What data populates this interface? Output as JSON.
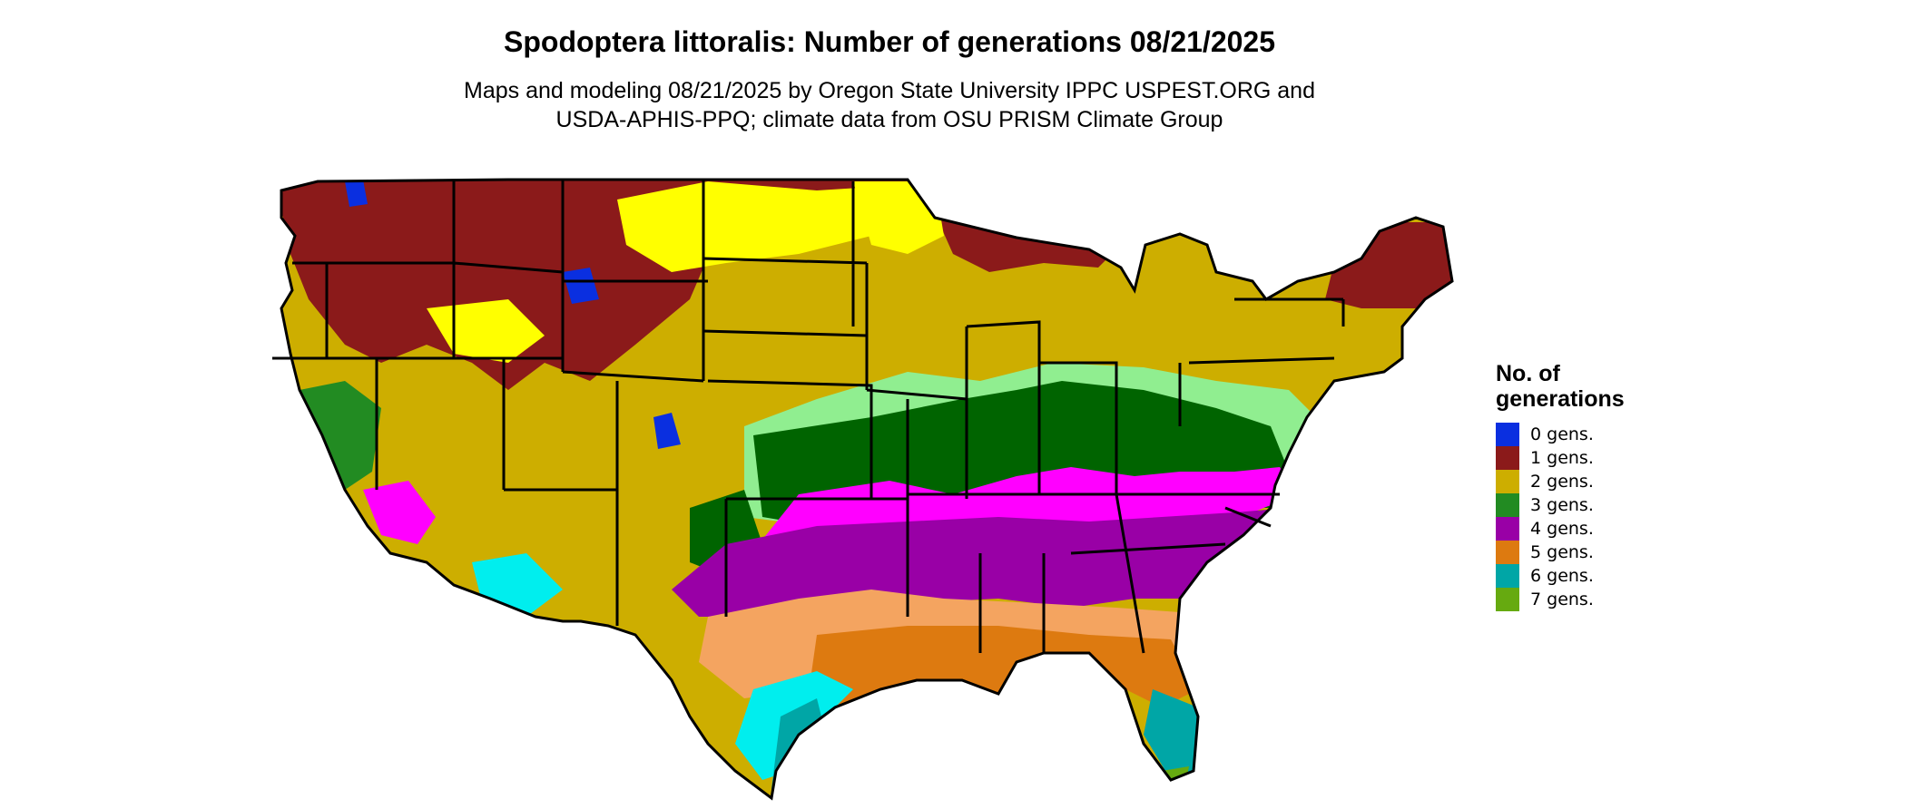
{
  "title": "Spodoptera littoralis: Number of generations 08/21/2025",
  "subtitle_line1": "Maps and modeling 08/21/2025 by Oregon State University IPPC USPEST.ORG and",
  "subtitle_line2": "USDA-APHIS-PPQ; climate data from OSU PRISM Climate Group",
  "legend": {
    "title_line1": "No. of",
    "title_line2": "generations",
    "items": [
      {
        "label": "0 gens.",
        "color": "#0a2fe0"
      },
      {
        "label": "1 gens.",
        "color": "#8b1a1a"
      },
      {
        "label": "2 gens.",
        "color": "#cdae00"
      },
      {
        "label": "3 gens.",
        "color": "#228b22"
      },
      {
        "label": "4 gens.",
        "color": "#9900a6"
      },
      {
        "label": "5 gens.",
        "color": "#dd7a10"
      },
      {
        "label": "6 gens.",
        "color": "#00a6a6"
      },
      {
        "label": "7 gens.",
        "color": "#66aa10"
      }
    ]
  },
  "map_colors": {
    "gen0": "#0a2fe0",
    "gen1": "#8b1a1a",
    "gen1_light": "#c0322a",
    "gen2": "#cdae00",
    "gen2_bright": "#ffff00",
    "gen3": "#006400",
    "gen3_light": "#90ee90",
    "gen3_mid": "#228b22",
    "gen4": "#9900a6",
    "gen4_bright": "#ff00ff",
    "gen5": "#dd7a10",
    "gen5_light": "#f4a460",
    "gen6": "#00a6a6",
    "gen6_bright": "#00eeee",
    "gen7": "#66aa10"
  }
}
